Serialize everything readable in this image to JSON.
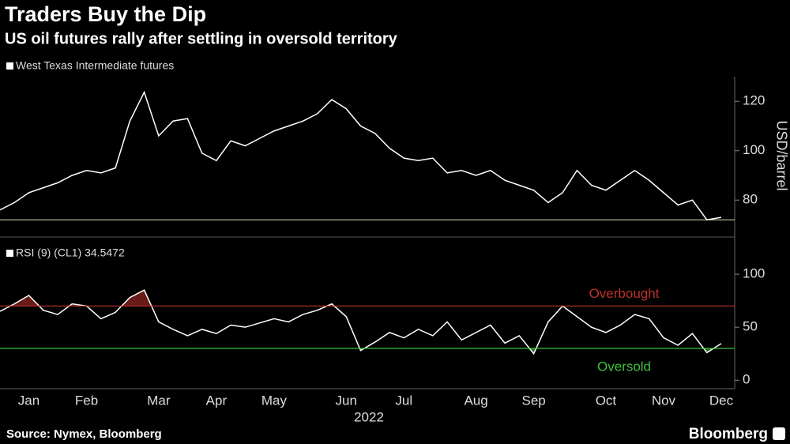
{
  "chart_data": [
    {
      "type": "line",
      "title": "Traders Buy the Dip",
      "subtitle": "US oil futures rally after settling in oversold territory",
      "ylabel": "USD/barrel",
      "ylim": [
        66,
        130
      ],
      "yticks": [
        80,
        100,
        120
      ],
      "hline": 72,
      "hline_color": "#e8d9b0",
      "series": [
        {
          "name": "West Texas Intermediate futures",
          "color": "#ffffff",
          "values": [
            76,
            79,
            83,
            85,
            87,
            90,
            92,
            91,
            93,
            112,
            123.7,
            106,
            112,
            113,
            99,
            96,
            104,
            102,
            105,
            108,
            110,
            112,
            115,
            120.7,
            117,
            110,
            107,
            101,
            97,
            96,
            97,
            91,
            92,
            90,
            92,
            88,
            86,
            84,
            79,
            83,
            92,
            86,
            84,
            88,
            92,
            88,
            83,
            78,
            80,
            72,
            73
          ]
        }
      ]
    },
    {
      "type": "line",
      "xlabel": "2022",
      "ylim": [
        -8,
        109
      ],
      "yticks": [
        0,
        50,
        100
      ],
      "categories": [
        null,
        null,
        "Jan",
        null,
        null,
        null,
        "Feb",
        null,
        null,
        null,
        null,
        "Mar",
        null,
        null,
        null,
        "Apr",
        null,
        null,
        null,
        "May",
        null,
        null,
        null,
        null,
        "Jun",
        null,
        null,
        null,
        "Jul",
        null,
        null,
        null,
        null,
        "Aug",
        null,
        null,
        null,
        "Sep",
        null,
        null,
        null,
        null,
        "Oct",
        null,
        null,
        null,
        "Nov",
        null,
        null,
        null,
        "Dec"
      ],
      "hlines": [
        {
          "value": 70,
          "label": "Overbought",
          "color": "#c0312b"
        },
        {
          "value": 30,
          "label": "Oversold",
          "color": "#3ec43e"
        }
      ],
      "series": [
        {
          "name": "RSI (9) (CL1) 34.5472",
          "color": "#ffffff",
          "values": [
            65,
            72,
            80,
            66,
            62,
            72,
            70,
            58,
            64,
            78,
            85,
            55,
            48,
            42,
            48,
            44,
            52,
            50,
            54,
            58,
            55,
            62,
            66,
            72,
            60,
            28,
            36,
            45,
            40,
            48,
            42,
            55,
            38,
            45,
            52,
            35,
            42,
            25,
            55,
            70,
            60,
            50,
            45,
            52,
            62,
            58,
            40,
            33,
            44,
            26,
            34.5472
          ]
        }
      ]
    }
  ],
  "source": "Source: Nymex, Bloomberg",
  "brand": "Bloomberg"
}
